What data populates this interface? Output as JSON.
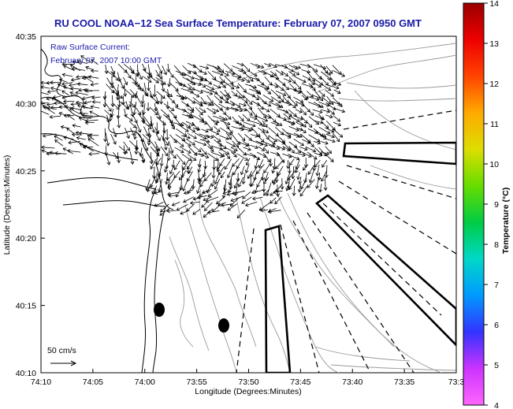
{
  "title": "RU COOL  NOAA−12  Sea Surface Temperature:  February 07, 2007 0950 GMT",
  "inset": {
    "line1": "Raw Surface Current:",
    "line2": "February 07, 2007 10:00 GMT"
  },
  "scale_label": "50 cm/s",
  "x_axis": {
    "label": "Longitude (Degrees:Minutes)",
    "ticks": [
      "74:10",
      "74:05",
      "74:00",
      "73:55",
      "73:50",
      "73:45",
      "73:40",
      "73:35",
      "73:3"
    ]
  },
  "y_axis": {
    "label": "Latitude (Degrees:Minutes)",
    "ticks": [
      "40:35",
      "40:30",
      "40:25",
      "40:20",
      "40:15",
      "40:10"
    ]
  },
  "colorbar": {
    "label": "Temperature (°C)",
    "ticks": [
      "14",
      "13",
      "12",
      "11",
      "10",
      "9",
      "8",
      "7",
      "6",
      "5",
      "4"
    ],
    "min": 4,
    "max": 14,
    "colors": [
      "#ff66ff",
      "#cc33ff",
      "#3333ff",
      "#0099ff",
      "#00d8c8",
      "#00cc44",
      "#66dd00",
      "#dddd00",
      "#ffaa00",
      "#ff4400",
      "#ee0000",
      "#990000"
    ]
  }
}
